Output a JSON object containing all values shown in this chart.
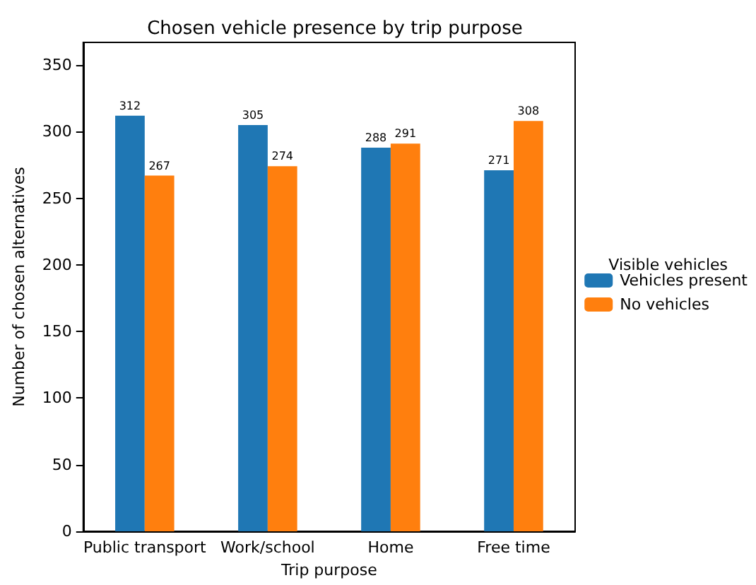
{
  "chart_data": {
    "type": "bar",
    "title": "Chosen vehicle presence by trip purpose",
    "xlabel": "Trip purpose",
    "ylabel": "Number of chosen alternatives",
    "legend_title": "Visible vehicles",
    "categories": [
      "Public transport",
      "Work/school",
      "Home",
      "Free time"
    ],
    "series": [
      {
        "name": "Vehicles present",
        "color": "#1f77b4",
        "values": [
          312,
          305,
          288,
          271
        ]
      },
      {
        "name": "No vehicles",
        "color": "#ff7f0e",
        "values": [
          267,
          274,
          291,
          308
        ]
      }
    ],
    "ylim": [
      0,
      367
    ],
    "yticks": [
      0,
      50,
      100,
      150,
      200,
      250,
      300,
      350
    ],
    "data_labels": true,
    "legend": "right",
    "grid": false
  }
}
